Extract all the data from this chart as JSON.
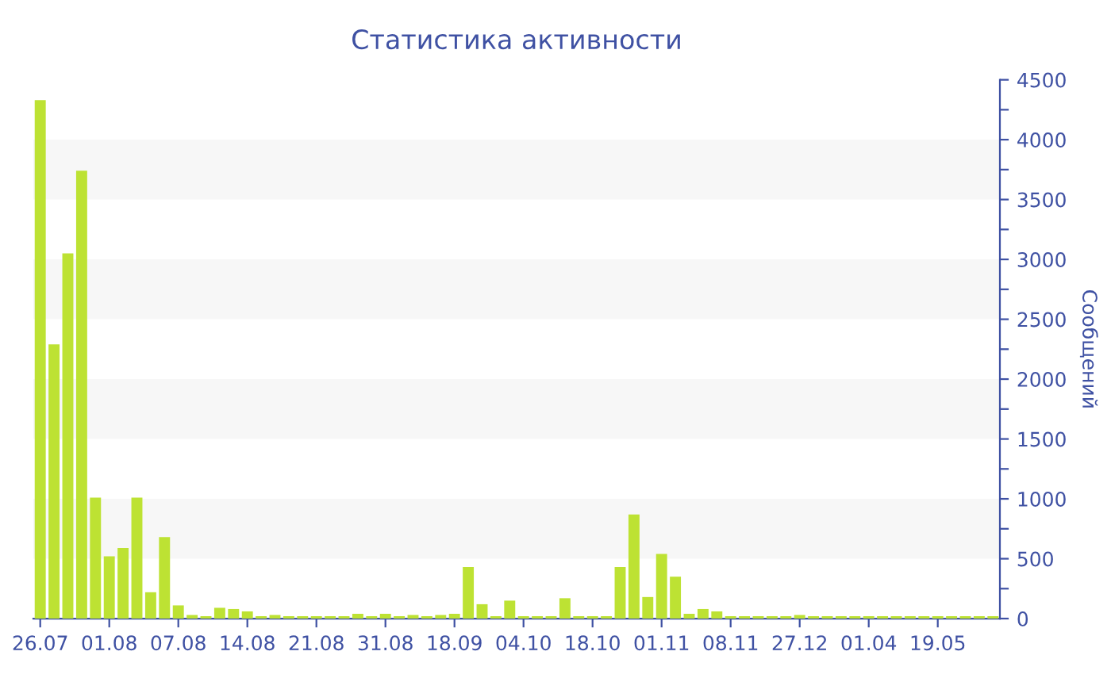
{
  "chart_data": {
    "type": "bar",
    "title": "Статистика активности",
    "ylabel": "Сообщений",
    "categories": [
      "26.07",
      null,
      null,
      null,
      null,
      "01.08",
      null,
      null,
      null,
      null,
      "07.08",
      null,
      null,
      null,
      null,
      "14.08",
      null,
      null,
      null,
      null,
      "21.08",
      null,
      null,
      null,
      null,
      "31.08",
      null,
      null,
      null,
      null,
      "18.09",
      null,
      null,
      null,
      null,
      "04.10",
      null,
      null,
      null,
      null,
      "18.10",
      null,
      null,
      null,
      null,
      "01.11",
      null,
      null,
      null,
      null,
      "08.11",
      null,
      null,
      null,
      null,
      "27.12",
      null,
      null,
      null,
      null,
      "01.04",
      null,
      null,
      null,
      null,
      "19.05",
      null,
      null,
      null,
      null
    ],
    "values": [
      4330,
      2290,
      3050,
      3740,
      1010,
      520,
      590,
      1010,
      220,
      680,
      110,
      30,
      20,
      90,
      80,
      60,
      20,
      30,
      20,
      20,
      20,
      20,
      20,
      40,
      20,
      40,
      20,
      30,
      20,
      30,
      40,
      430,
      120,
      20,
      150,
      20,
      20,
      20,
      170,
      20,
      20,
      20,
      430,
      870,
      180,
      540,
      350,
      40,
      80,
      60,
      20,
      20,
      20,
      20,
      20,
      30,
      20,
      20,
      20,
      20,
      20,
      20,
      20,
      20,
      20,
      20,
      20,
      20,
      20,
      20
    ],
    "color": "#bde233",
    "ylim": [
      0,
      4500
    ],
    "yticks": [
      0,
      {
        "value": 250,
        "label": null
      },
      500,
      {
        "value": 750,
        "label": null
      },
      1000,
      {
        "value": 1250,
        "label": null
      },
      1500,
      {
        "value": 1750,
        "label": null
      },
      2000,
      {
        "value": 2250,
        "label": null
      },
      2500,
      {
        "value": 2750,
        "label": null
      },
      3000,
      {
        "value": 3250,
        "label": null
      },
      3500,
      {
        "value": 3750,
        "label": null
      },
      4000,
      {
        "value": 4250,
        "label": null
      },
      4500
    ],
    "bands": [
      {
        "axis": "y",
        "from": 500,
        "to": 1000,
        "color": "#f7f7f7"
      },
      {
        "axis": "y",
        "from": 1500,
        "to": 2000,
        "color": "#f7f7f7"
      },
      {
        "axis": "y",
        "from": 2500,
        "to": 3000,
        "color": "#f7f7f7"
      },
      {
        "axis": "y",
        "from": 3500,
        "to": 4000,
        "color": "#f7f7f7"
      }
    ],
    "grid": false,
    "legend": false
  }
}
